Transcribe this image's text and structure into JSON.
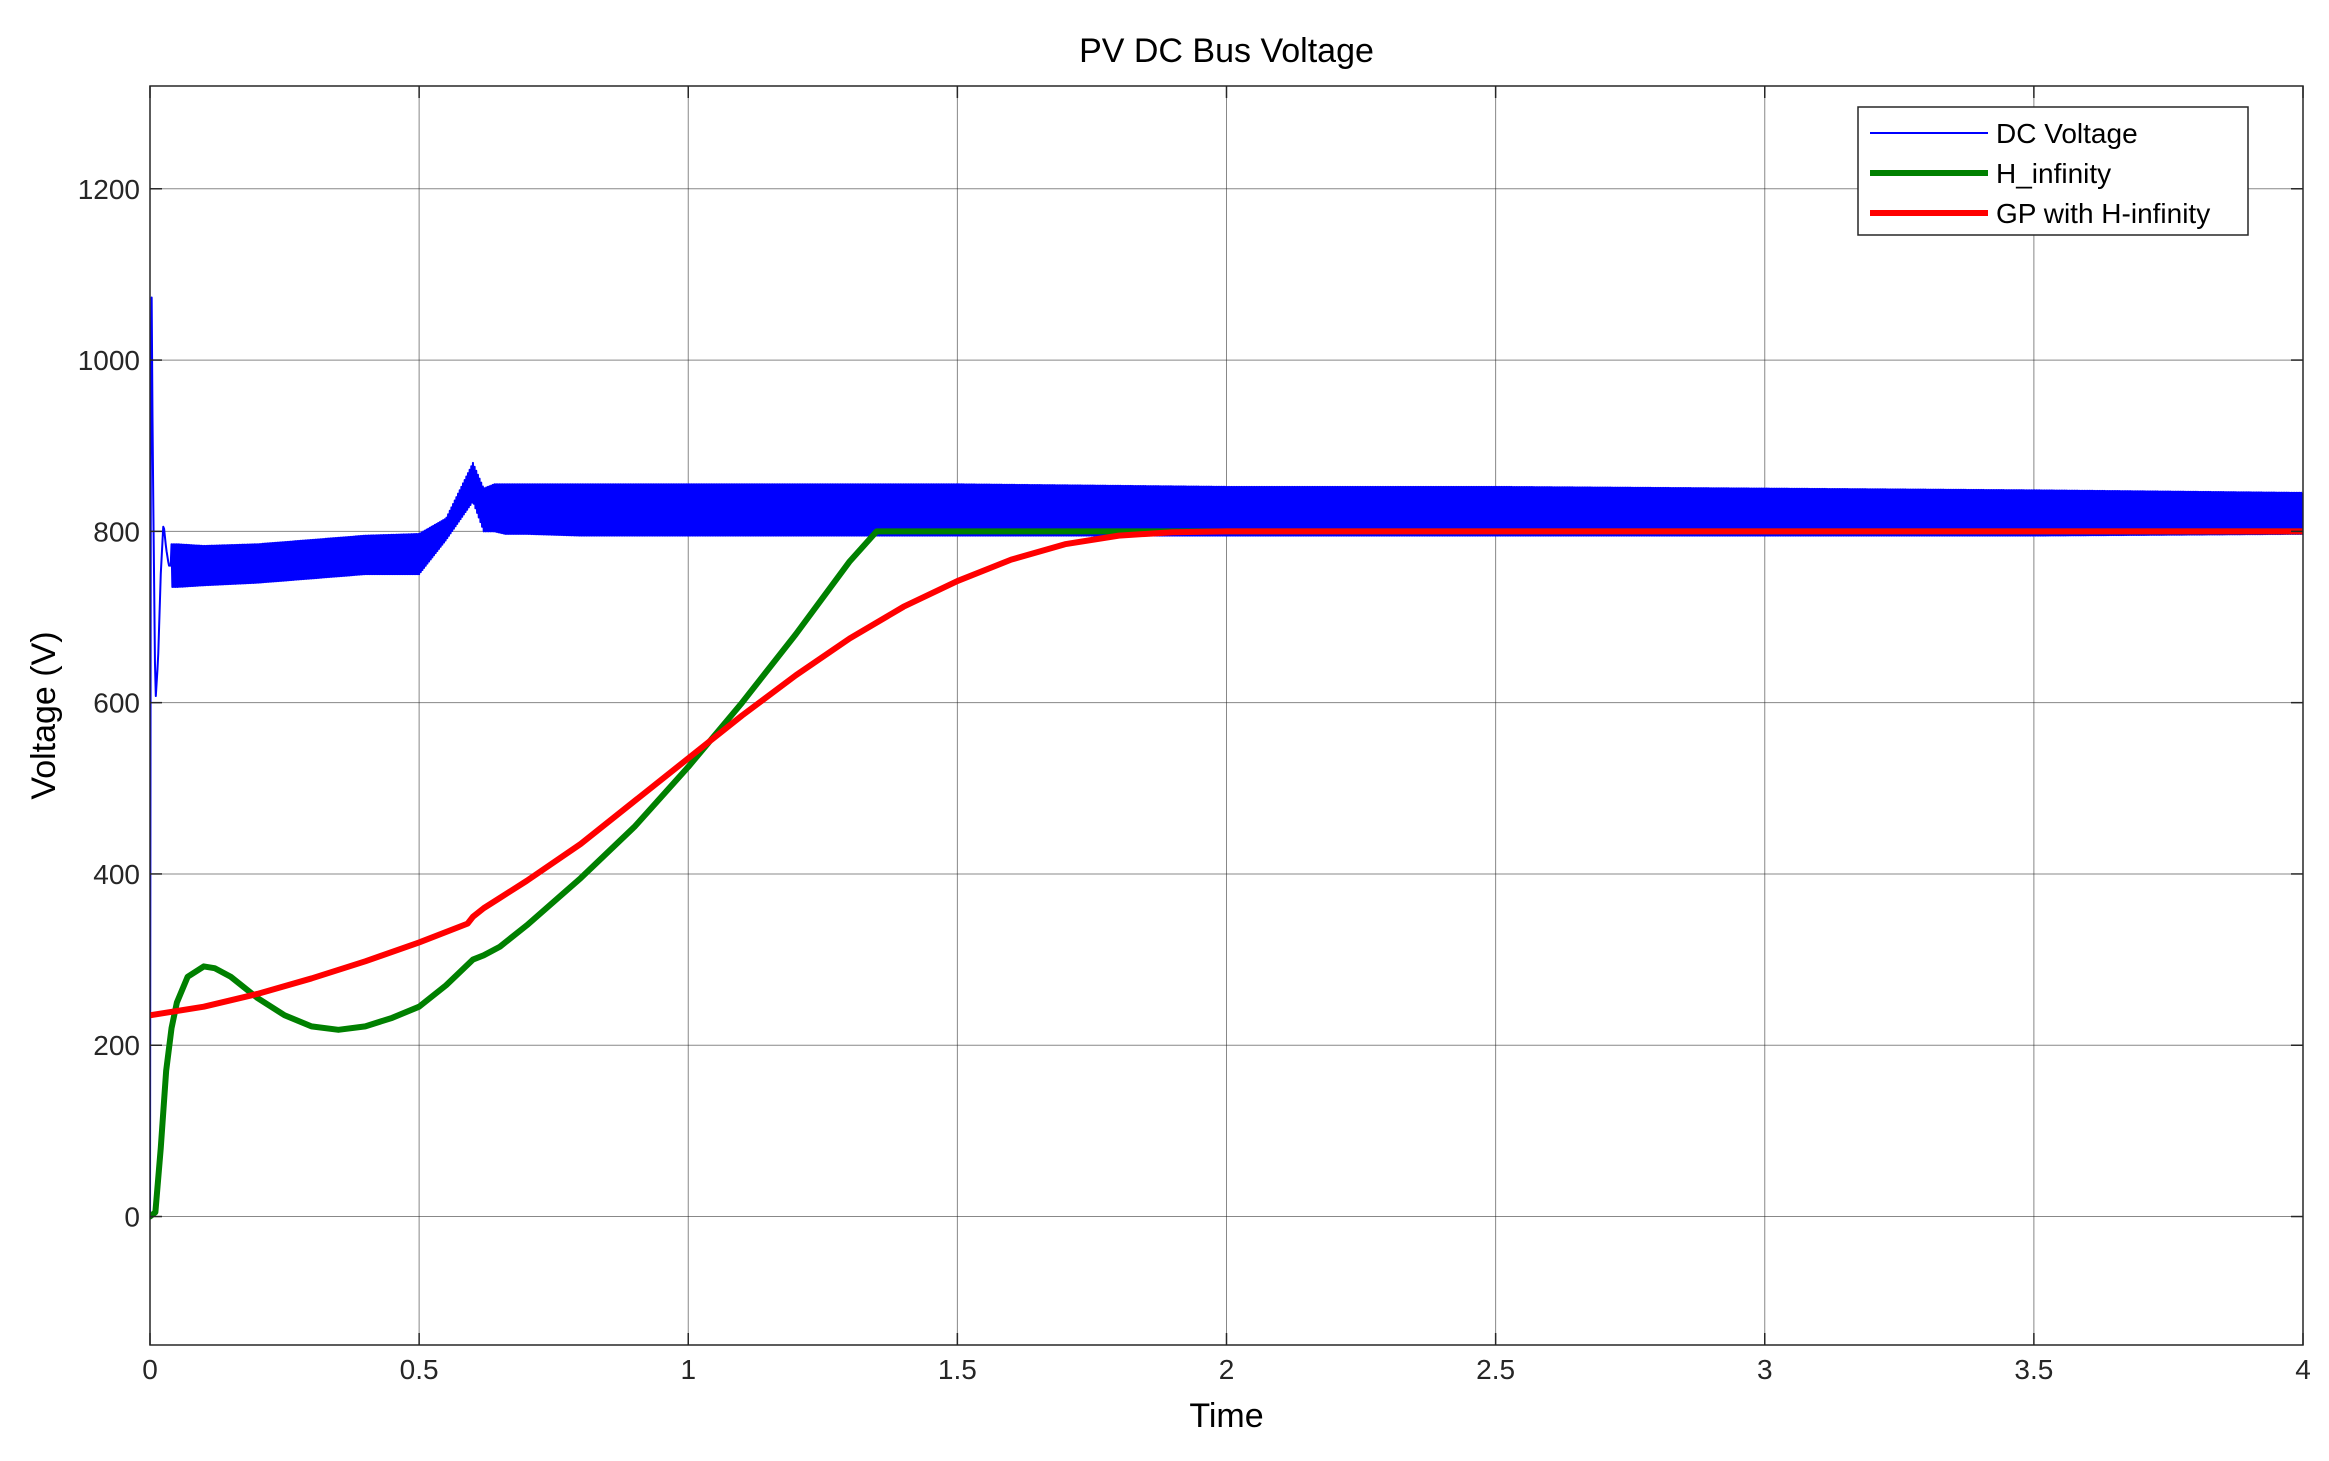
{
  "chart_data": {
    "type": "line",
    "title": "PV DC Bus Voltage",
    "xlabel": "Time",
    "ylabel": "Voltage (V)",
    "xlim": [
      0,
      4
    ],
    "ylim": [
      -150,
      1320
    ],
    "xticks": [
      0,
      0.5,
      1,
      1.5,
      2,
      2.5,
      3,
      3.5,
      4
    ],
    "xtick_labels": [
      "0",
      "0.5",
      "1",
      "1.5",
      "2",
      "2.5",
      "3",
      "3.5",
      "4"
    ],
    "yticks": [
      0,
      200,
      400,
      600,
      800,
      1000,
      1200
    ],
    "ytick_labels": [
      "0",
      "200",
      "400",
      "600",
      "800",
      "1000",
      "1200"
    ],
    "grid": true,
    "legend_position": "top-right",
    "series": [
      {
        "name": "DC Voltage",
        "color": "#0000ff",
        "style": "oscillating band",
        "x": [
          0,
          0.002,
          0.005,
          0.01,
          0.015,
          0.02,
          0.025,
          0.03,
          0.035,
          0.04,
          0.05,
          0.1,
          0.2,
          0.3,
          0.4,
          0.5,
          0.55,
          0.6,
          0.62,
          0.64,
          0.66,
          0.7,
          0.8,
          1.0,
          1.5,
          2.0,
          2.5,
          3.0,
          3.5,
          4.0
        ],
        "y": [
          0,
          1170,
          900,
          600,
          650,
          750,
          810,
          780,
          760,
          760,
          760,
          760,
          762,
          768,
          773,
          775,
          800,
          845,
          815,
          825,
          825,
          825,
          825,
          825,
          825,
          822,
          822,
          822,
          820,
          818
        ],
        "band_low": [
          0,
          1170,
          900,
          565,
          600,
          700,
          760,
          740,
          735,
          735,
          735,
          737,
          740,
          745,
          750,
          750,
          790,
          835,
          800,
          800,
          797,
          797,
          795,
          795,
          795,
          795,
          795,
          795,
          795,
          797
        ],
        "band_high": [
          0,
          1170,
          900,
          700,
          720,
          790,
          810,
          790,
          785,
          785,
          785,
          783,
          785,
          790,
          795,
          797,
          815,
          880,
          850,
          855,
          855,
          855,
          855,
          855,
          855,
          852,
          852,
          850,
          848,
          845
        ]
      },
      {
        "name": "H_infinity",
        "color": "#008000",
        "x": [
          0,
          0.01,
          0.02,
          0.03,
          0.04,
          0.05,
          0.07,
          0.1,
          0.12,
          0.15,
          0.2,
          0.25,
          0.3,
          0.35,
          0.4,
          0.45,
          0.5,
          0.55,
          0.6,
          0.62,
          0.65,
          0.7,
          0.8,
          0.9,
          1.0,
          1.1,
          1.2,
          1.3,
          1.35,
          1.5,
          2.0,
          2.5,
          3.0,
          3.5,
          4.0
        ],
        "y": [
          0,
          5,
          80,
          170,
          220,
          250,
          280,
          292,
          290,
          280,
          255,
          235,
          222,
          218,
          222,
          232,
          245,
          270,
          300,
          305,
          315,
          340,
          395,
          455,
          525,
          600,
          680,
          765,
          800,
          800,
          800,
          800,
          800,
          800,
          800
        ]
      },
      {
        "name": "GP with H-infinity",
        "color": "#ff0000",
        "x": [
          0,
          0.1,
          0.2,
          0.3,
          0.4,
          0.5,
          0.59,
          0.6,
          0.62,
          0.65,
          0.7,
          0.8,
          0.9,
          1.0,
          1.1,
          1.2,
          1.3,
          1.4,
          1.5,
          1.6,
          1.7,
          1.8,
          1.9,
          2.0,
          2.5,
          3.0,
          3.5,
          4.0
        ],
        "y": [
          235,
          245,
          260,
          278,
          298,
          320,
          342,
          350,
          360,
          372,
          392,
          435,
          485,
          535,
          585,
          632,
          675,
          712,
          742,
          767,
          785,
          795,
          799,
          800,
          800,
          800,
          800,
          800
        ]
      }
    ]
  }
}
